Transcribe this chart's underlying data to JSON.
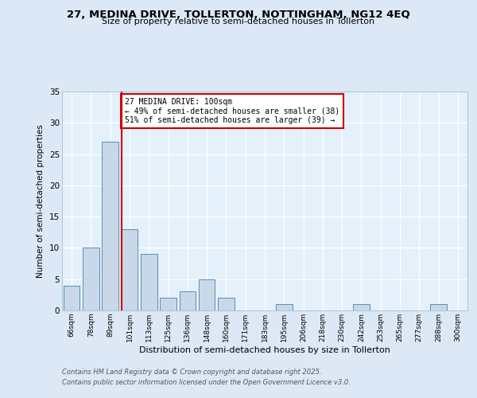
{
  "title1": "27, MEDINA DRIVE, TOLLERTON, NOTTINGHAM, NG12 4EQ",
  "title2": "Size of property relative to semi-detached houses in Tollerton",
  "xlabel": "Distribution of semi-detached houses by size in Tollerton",
  "ylabel": "Number of semi-detached properties",
  "categories": [
    "66sqm",
    "78sqm",
    "89sqm",
    "101sqm",
    "113sqm",
    "125sqm",
    "136sqm",
    "148sqm",
    "160sqm",
    "171sqm",
    "183sqm",
    "195sqm",
    "206sqm",
    "218sqm",
    "230sqm",
    "242sqm",
    "253sqm",
    "265sqm",
    "277sqm",
    "288sqm",
    "300sqm"
  ],
  "values": [
    4,
    10,
    27,
    13,
    9,
    2,
    3,
    5,
    2,
    0,
    0,
    1,
    0,
    0,
    0,
    1,
    0,
    0,
    0,
    1,
    0
  ],
  "bar_color": "#c8d8e8",
  "bar_edge_color": "#5b8db8",
  "red_line_index": 3,
  "red_line_color": "#cc0000",
  "annotation_text": "27 MEDINA DRIVE: 100sqm\n← 49% of semi-detached houses are smaller (38)\n51% of semi-detached houses are larger (39) →",
  "annotation_box_color": "#ffffff",
  "annotation_box_edge": "#cc0000",
  "ylim": [
    0,
    35
  ],
  "yticks": [
    0,
    5,
    10,
    15,
    20,
    25,
    30,
    35
  ],
  "footer1": "Contains HM Land Registry data © Crown copyright and database right 2025.",
  "footer2": "Contains public sector information licensed under the Open Government Licence v3.0.",
  "bg_color": "#dce8f5",
  "plot_bg_color": "#e4f0fa"
}
